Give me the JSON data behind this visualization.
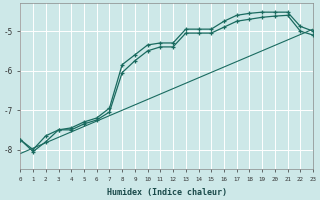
{
  "xlabel": "Humidex (Indice chaleur)",
  "bg_color": "#cde8e8",
  "line_color": "#1a6b60",
  "grid_color": "#ffffff",
  "x_min": 0,
  "x_max": 23,
  "y_min": -8.5,
  "y_max": -4.3,
  "yticks": [
    -8,
    -7,
    -6,
    -5
  ],
  "curve1_x": [
    0,
    1,
    2,
    3,
    4,
    5,
    6,
    7,
    8,
    9,
    10,
    11,
    12,
    13,
    14,
    15,
    16,
    17,
    18,
    19,
    20,
    21,
    22,
    23
  ],
  "curve1_y": [
    -7.75,
    -8.0,
    -7.65,
    -7.5,
    -7.45,
    -7.3,
    -7.2,
    -6.95,
    -5.85,
    -5.6,
    -5.35,
    -5.3,
    -5.3,
    -4.95,
    -4.95,
    -4.95,
    -4.75,
    -4.6,
    -4.55,
    -4.52,
    -4.52,
    -4.52,
    -4.88,
    -5.0
  ],
  "curve2_x": [
    0,
    1,
    2,
    3,
    4,
    5,
    6,
    7,
    8,
    9,
    10,
    11,
    12,
    13,
    14,
    15,
    16,
    17,
    18,
    19,
    20,
    21,
    22,
    23
  ],
  "curve2_y": [
    -7.75,
    -8.05,
    -7.8,
    -7.5,
    -7.5,
    -7.35,
    -7.25,
    -7.05,
    -6.05,
    -5.75,
    -5.5,
    -5.4,
    -5.4,
    -5.05,
    -5.05,
    -5.05,
    -4.9,
    -4.75,
    -4.7,
    -4.65,
    -4.62,
    -4.6,
    -5.0,
    -5.1
  ],
  "line_x": [
    0,
    23
  ],
  "line_y": [
    -8.1,
    -4.95
  ]
}
